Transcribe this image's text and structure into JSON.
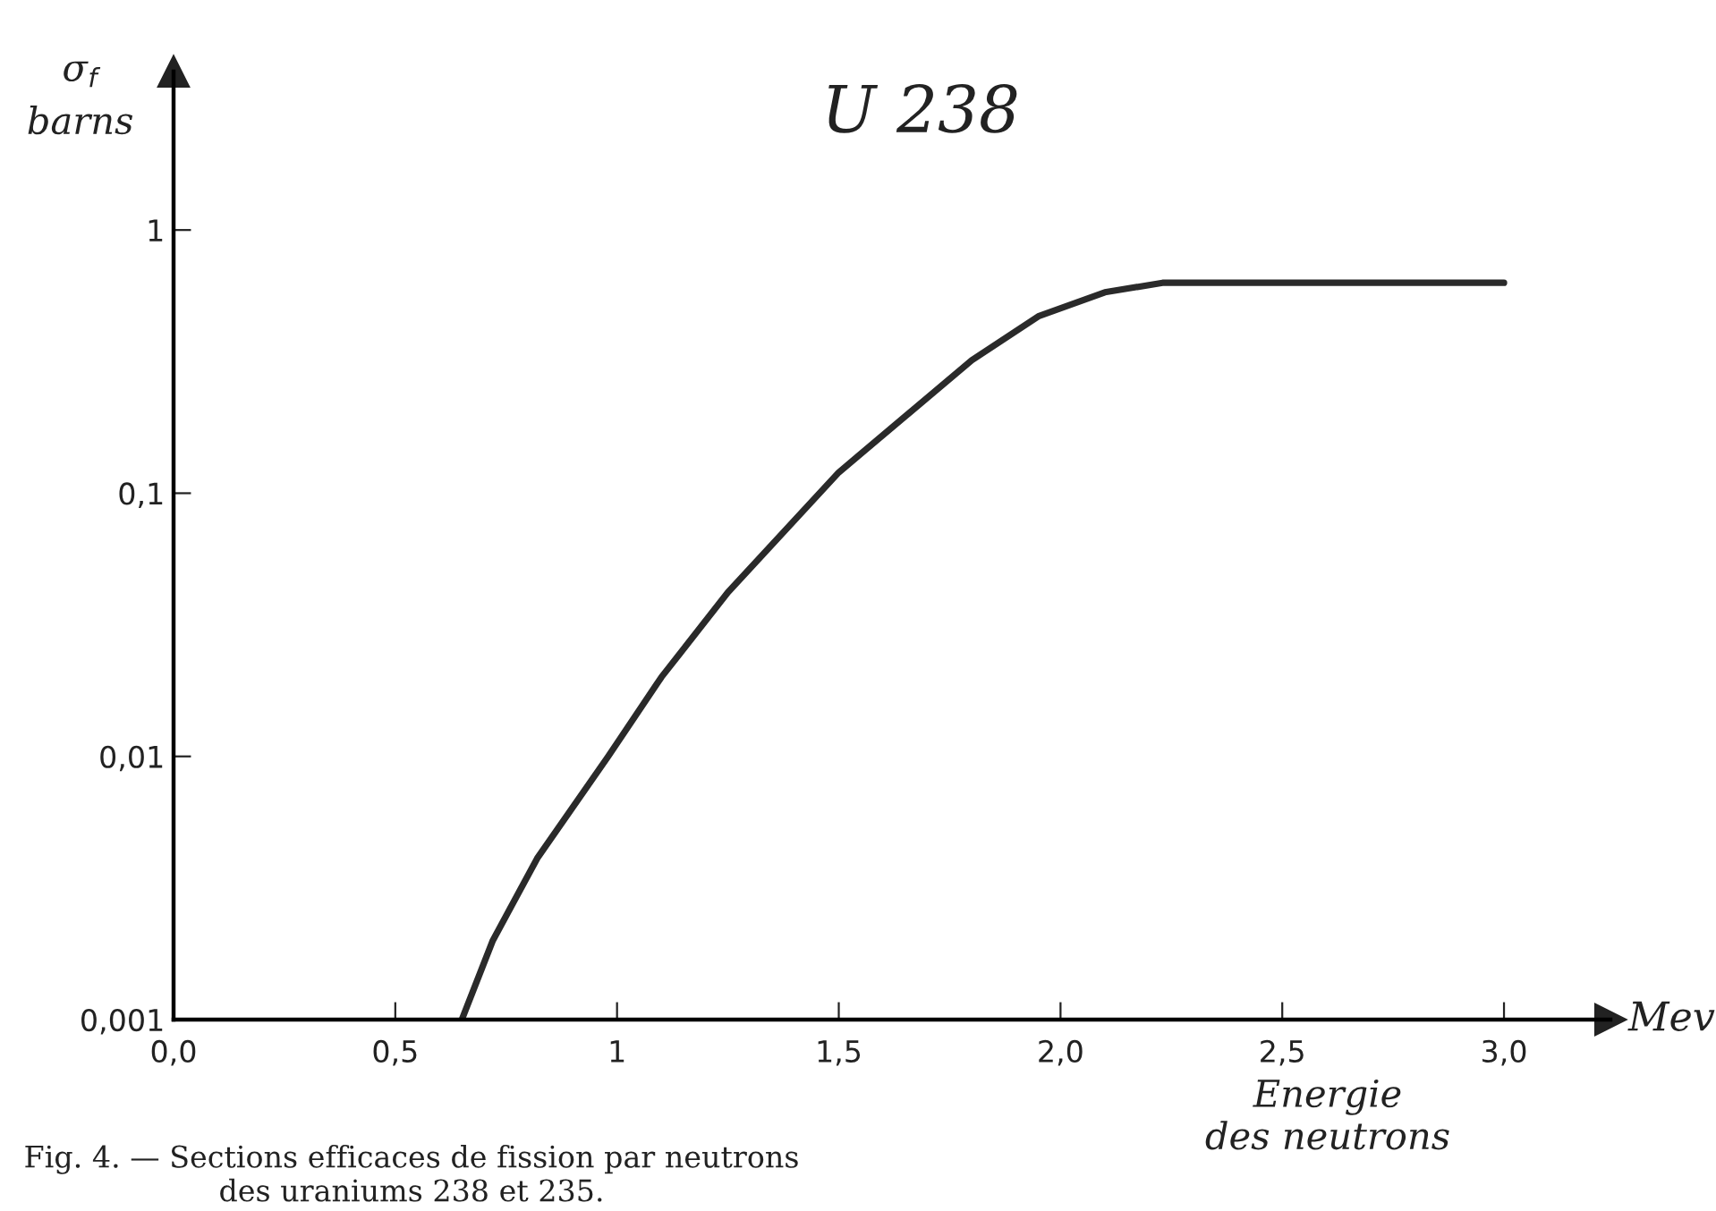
{
  "chart_data": {
    "type": "line",
    "title": "U 238",
    "ylabel": "σ$_{f}$\nbarns",
    "xlabel": "Energie\ndes neutrons",
    "annotations": [
      "Mev",
      "Fig. 4. — Sections efficaces de fission par neutrons\ndes uraniums 238 et 235."
    ],
    "x": [
      0.65,
      0.72,
      0.82,
      0.98,
      1.1,
      1.25,
      1.5,
      1.8,
      1.95,
      2.1,
      2.23,
      3.0
    ],
    "series": [
      {
        "color": "#2a2a2a",
        "values": [
          0.001,
          0.002,
          0.0041,
          0.01,
          0.02,
          0.042,
          0.12,
          0.32,
          0.47,
          0.58,
          0.63,
          0.63
        ]
      }
    ],
    "log": "y",
    "xlim": [
      0,
      3.24
    ],
    "ylim": [
      0.001,
      4
    ],
    "xticks": [
      {
        "value": 0,
        "label": "0,0"
      },
      {
        "value": 0.5,
        "label": "0,5"
      },
      1,
      {
        "value": 1.5,
        "label": "1,5"
      },
      {
        "value": 2,
        "label": "2,0"
      },
      {
        "value": 2.5,
        "label": "2,5"
      },
      {
        "value": 3,
        "label": "3,0"
      }
    ],
    "yticks": [
      {
        "value": 0.001,
        "label": "0,001"
      },
      {
        "value": 0.01,
        "label": "0,01"
      },
      {
        "value": 0.1,
        "label": "0,1"
      },
      1
    ],
    "grid": false,
    "legend": false,
    "marker": "none",
    "line_style": "solid"
  }
}
